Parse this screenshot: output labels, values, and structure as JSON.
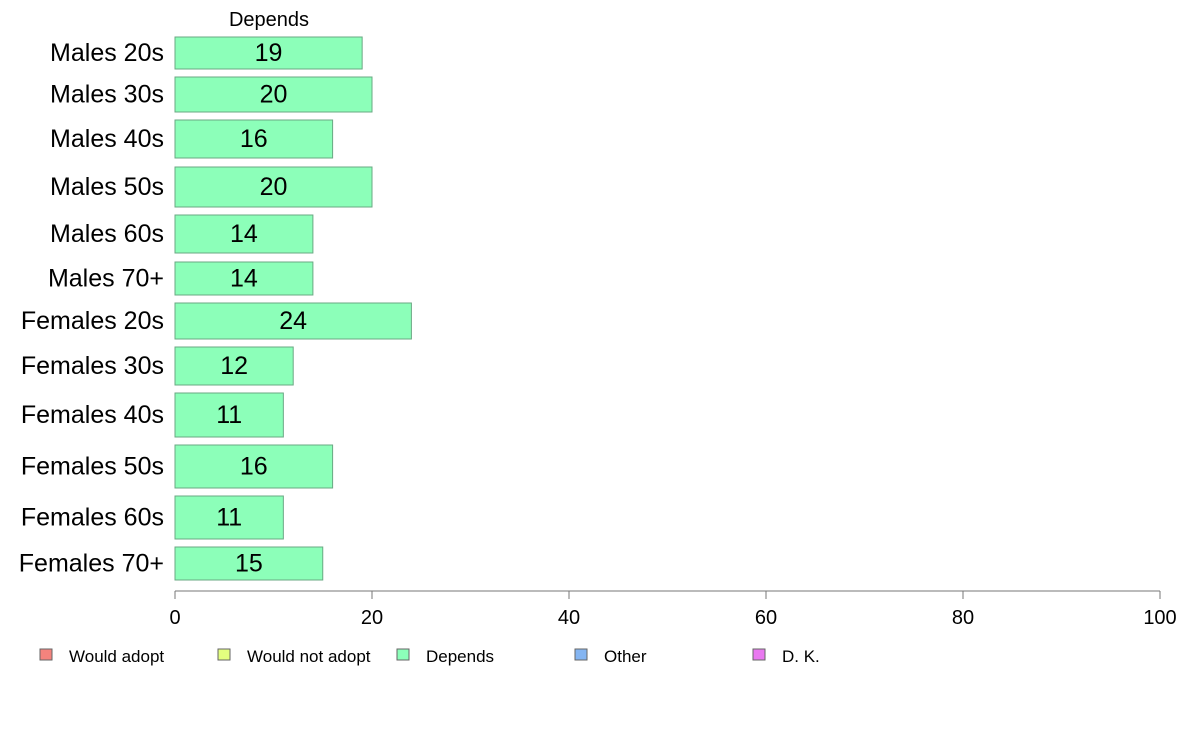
{
  "chart_data": {
    "type": "bar",
    "orientation": "horizontal",
    "series_header": "Depends",
    "categories": [
      "Males 20s",
      "Males 30s",
      "Males 40s",
      "Males 50s",
      "Males 60s",
      "Males 70+",
      "Females 20s",
      "Females 30s",
      "Females 40s",
      "Females 50s",
      "Females 60s",
      "Females 70+"
    ],
    "series": [
      {
        "name": "Depends",
        "color": "#8cffb9",
        "values": [
          19,
          20,
          16,
          20,
          14,
          14,
          24,
          12,
          11,
          16,
          11,
          15
        ]
      }
    ],
    "xlim": [
      0,
      100
    ],
    "xticks": [
      0,
      20,
      40,
      60,
      80,
      100
    ],
    "grid": false,
    "legend_position": "bottom",
    "legend": [
      {
        "label": "Would adopt",
        "color": "#f4837d"
      },
      {
        "label": "Would not adopt",
        "color": "#e3ff7f"
      },
      {
        "label": "Depends",
        "color": "#8cffb9"
      },
      {
        "label": "Other",
        "color": "#84b5f2"
      },
      {
        "label": "D. K.",
        "color": "#e978f0"
      }
    ]
  }
}
